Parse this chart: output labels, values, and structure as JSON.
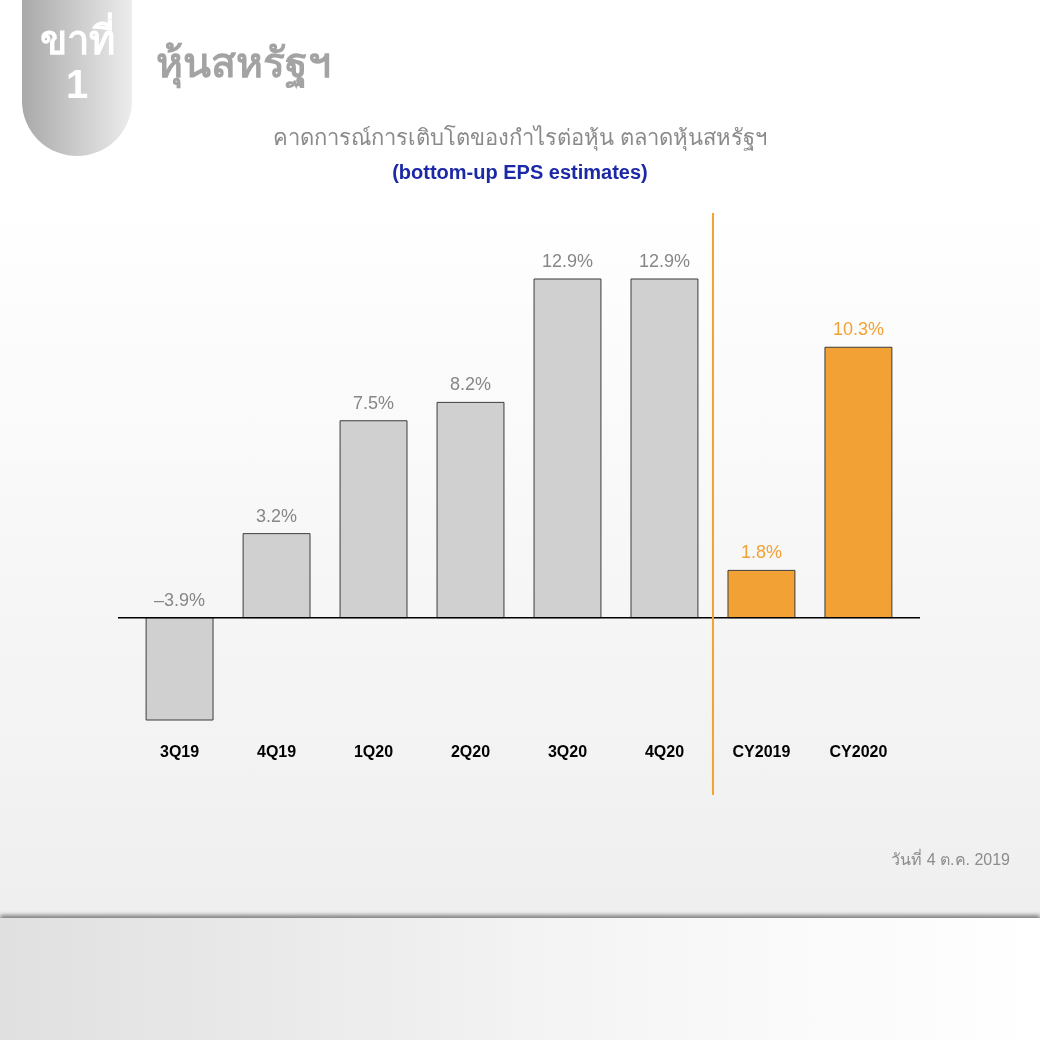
{
  "chart_data": {
    "type": "bar",
    "title": "คาดการณ์การเติบโตของกำไรต่อหุ้น ตลาดหุ้นสหรัฐฯ",
    "subtitle": "(bottom-up EPS estimates)",
    "categories": [
      "3Q19",
      "4Q19",
      "1Q20",
      "2Q20",
      "3Q20",
      "4Q20",
      "CY2019",
      "CY2020"
    ],
    "values": [
      -3.9,
      3.2,
      7.5,
      8.2,
      12.9,
      12.9,
      1.8,
      10.3
    ],
    "value_labels": [
      "–3.9%",
      "3.2%",
      "7.5%",
      "8.2%",
      "12.9%",
      "12.9%",
      "1.8%",
      "10.3%"
    ],
    "colors": [
      "#d0d0d0",
      "#d0d0d0",
      "#d0d0d0",
      "#d0d0d0",
      "#d0d0d0",
      "#d0d0d0",
      "#f2a134",
      "#f2a134"
    ],
    "ref_lines": [
      {
        "axis": "y",
        "value": 0,
        "color": "#000000"
      },
      {
        "axis": "x",
        "value": "CY2019",
        "color": "#f2a134"
      }
    ],
    "tick_labels": "x",
    "annotations": [
      "ขาที่ 1",
      "หุ้นสหรัฐฯ",
      "วันที่ 4 ต.ค. 2019"
    ]
  }
}
